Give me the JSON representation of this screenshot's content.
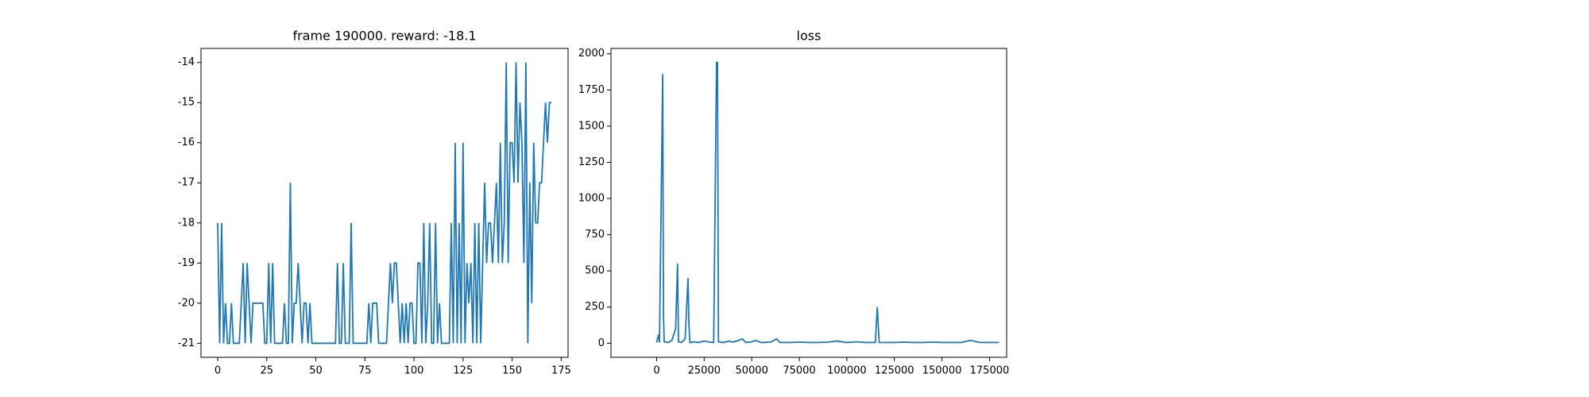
{
  "chart_data": [
    {
      "type": "line",
      "title": "frame 190000. reward: -18.1",
      "color": "#1f77b4",
      "x": [
        0,
        1,
        2,
        3,
        4,
        5,
        6,
        7,
        8,
        9,
        10,
        11,
        12,
        13,
        14,
        15,
        16,
        17,
        18,
        19,
        20,
        21,
        22,
        23,
        24,
        25,
        26,
        27,
        28,
        29,
        30,
        31,
        32,
        33,
        34,
        35,
        36,
        37,
        38,
        39,
        40,
        41,
        42,
        43,
        44,
        45,
        46,
        47,
        48,
        49,
        50,
        51,
        52,
        53,
        54,
        55,
        56,
        57,
        58,
        59,
        60,
        61,
        62,
        63,
        64,
        65,
        66,
        67,
        68,
        69,
        70,
        71,
        72,
        73,
        74,
        75,
        76,
        77,
        78,
        79,
        80,
        81,
        82,
        83,
        84,
        85,
        86,
        87,
        88,
        89,
        90,
        91,
        92,
        93,
        94,
        95,
        96,
        97,
        98,
        99,
        100,
        101,
        102,
        103,
        104,
        105,
        106,
        107,
        108,
        109,
        110,
        111,
        112,
        113,
        114,
        115,
        116,
        117,
        118,
        119,
        120,
        121,
        122,
        123,
        124,
        125,
        126,
        127,
        128,
        129,
        130,
        131,
        132,
        133,
        134,
        135,
        136,
        137,
        138,
        139,
        140,
        141,
        142,
        143,
        144,
        145,
        146,
        147,
        148,
        149,
        150,
        151,
        152,
        153,
        154,
        155,
        156,
        157,
        158,
        159,
        160,
        161,
        162,
        163,
        164,
        165,
        166,
        167,
        168,
        169,
        170
      ],
      "values": [
        -18,
        -21,
        -18,
        -21,
        -20,
        -21,
        -21,
        -20,
        -21,
        -21,
        -21,
        -21,
        -20,
        -19,
        -21,
        -19,
        -20,
        -21,
        -20,
        -20,
        -20,
        -20,
        -20,
        -20,
        -21,
        -21,
        -19,
        -21,
        -19,
        -21,
        -21,
        -21,
        -21,
        -21,
        -20,
        -21,
        -21,
        -17,
        -21,
        -20,
        -20,
        -19,
        -20,
        -21,
        -20,
        -20,
        -21,
        -20,
        -21,
        -21,
        -21,
        -21,
        -21,
        -21,
        -21,
        -21,
        -21,
        -21,
        -21,
        -21,
        -21,
        -19,
        -21,
        -21,
        -19,
        -21,
        -21,
        -21,
        -18,
        -21,
        -21,
        -21,
        -21,
        -21,
        -21,
        -21,
        -21,
        -20,
        -21,
        -20,
        -20,
        -20,
        -21,
        -21,
        -21,
        -21,
        -21,
        -20,
        -19,
        -20,
        -19,
        -19,
        -20,
        -21,
        -20,
        -21,
        -20,
        -21,
        -20,
        -20,
        -21,
        -21,
        -19,
        -19,
        -21,
        -18,
        -21,
        -20,
        -18,
        -21,
        -21,
        -18,
        -21,
        -20,
        -21,
        -21,
        -21,
        -21,
        -21,
        -18,
        -21,
        -16,
        -21,
        -18,
        -21,
        -16,
        -21,
        -19,
        -20,
        -19,
        -21,
        -18,
        -21,
        -18,
        -21,
        -19,
        -17,
        -19,
        -18,
        -18,
        -19,
        -18,
        -17,
        -19,
        -16,
        -19,
        -18,
        -14,
        -19,
        -16,
        -16,
        -17,
        -14,
        -17,
        -15,
        -16,
        -19,
        -14,
        -21,
        -17,
        -20,
        -16,
        -18,
        -18,
        -17,
        -17,
        -16,
        -15,
        -16,
        -15,
        -15
      ],
      "xlim": [
        -8.5,
        178.5
      ],
      "xticks": [
        0,
        25,
        50,
        75,
        100,
        125,
        150,
        175
      ],
      "ylim": [
        -21.35,
        -13.65
      ],
      "yticks": [
        -21,
        -20,
        -19,
        -18,
        -17,
        -16,
        -15,
        -14
      ]
    },
    {
      "type": "line",
      "title": "loss",
      "color": "#1f77b4",
      "x": [
        0,
        1000,
        1500,
        2800,
        3200,
        3600,
        4000,
        6000,
        8000,
        10000,
        11000,
        11500,
        13000,
        15000,
        16500,
        17000,
        17500,
        20000,
        22000,
        25000,
        28000,
        30000,
        31500,
        32000,
        32500,
        35000,
        38000,
        40000,
        42000,
        45000,
        47000,
        50000,
        52000,
        55000,
        60000,
        63000,
        65000,
        70000,
        75000,
        80000,
        85000,
        90000,
        95000,
        100000,
        105000,
        110000,
        115000,
        116000,
        117000,
        120000,
        125000,
        130000,
        135000,
        140000,
        145000,
        150000,
        155000,
        160000,
        165000,
        170000,
        175000,
        180000
      ],
      "values": [
        5,
        60,
        5,
        1420,
        1860,
        200,
        10,
        5,
        20,
        100,
        550,
        10,
        5,
        30,
        450,
        120,
        5,
        10,
        5,
        15,
        8,
        5,
        1940,
        1940,
        10,
        5,
        15,
        8,
        15,
        30,
        5,
        10,
        20,
        5,
        8,
        30,
        5,
        5,
        8,
        5,
        5,
        8,
        15,
        5,
        10,
        5,
        5,
        250,
        5,
        5,
        5,
        8,
        5,
        5,
        8,
        5,
        5,
        5,
        20,
        5,
        5,
        5
      ],
      "xlim": [
        -24000,
        184000
      ],
      "xticks": [
        0,
        25000,
        50000,
        75000,
        100000,
        125000,
        150000,
        175000
      ],
      "ylim": [
        -97,
        2037
      ],
      "yticks": [
        0,
        250,
        500,
        750,
        1000,
        1250,
        1500,
        1750,
        2000
      ]
    }
  ]
}
